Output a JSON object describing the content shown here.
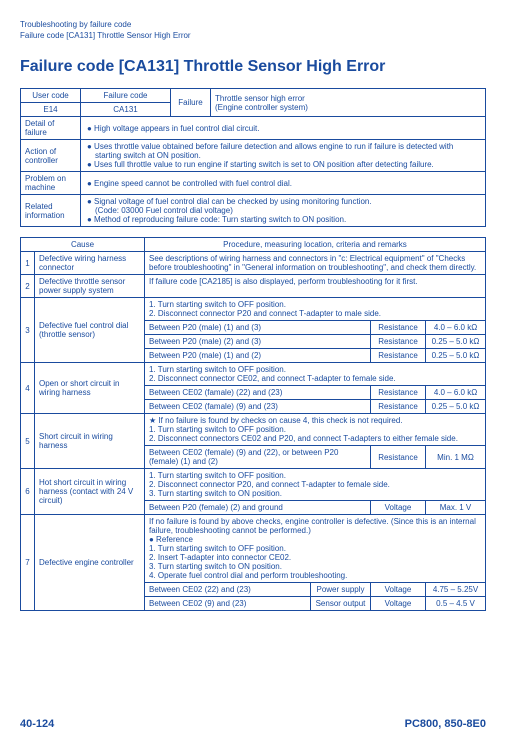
{
  "header": {
    "line1": "Troubleshooting by failure code",
    "line2": "Failure code [CA131] Throttle Sensor High Error"
  },
  "title": "Failure code [CA131] Throttle Sensor High Error",
  "table1": {
    "user_code_hdr": "User code",
    "failure_code_hdr": "Failure code",
    "failure_hdr": "Failure",
    "failure_desc1": "Throttle sensor high error",
    "failure_desc2": "(Engine controller system)",
    "user_code": "E14",
    "failure_code": "CA131",
    "rows": [
      {
        "label": "Detail of failure",
        "items": [
          "High voltage appears in fuel control dial circuit."
        ]
      },
      {
        "label": "Action of controller",
        "items": [
          "Uses throttle value obtained before failure detection and allows engine to run if failure is detected with starting switch at ON position.",
          "Uses full throttle value to run engine if starting switch is set to ON position after detecting failure."
        ]
      },
      {
        "label": "Problem on machine",
        "items": [
          "Engine speed cannot be controlled with fuel control dial."
        ]
      },
      {
        "label": "Related information",
        "items": [
          "Signal voltage of fuel control dial can be checked by using monitoring function.\n(Code: 03000 Fuel control dial voltage)",
          "Method of reproducing failure code: Turn starting switch to ON position."
        ]
      }
    ]
  },
  "table2": {
    "cause_hdr": "Cause",
    "procedure_hdr": "Procedure, measuring location, criteria and remarks",
    "rows": [
      {
        "num": "1",
        "cause": "Defective wiring harness connector",
        "procedure_full": "See descriptions of wiring harness and connectors in \"c: Electrical equipment\" of \"Checks before troubleshooting\" in \"General information on troubleshooting\", and check them directly."
      },
      {
        "num": "2",
        "cause": "Defective throttle sensor power supply system",
        "procedure_full": "If failure code [CA2185] is also displayed, perform troubleshooting for it first."
      },
      {
        "num": "3",
        "cause": "Defective fuel control dial (throttle sensor)",
        "steps": [
          "1.   Turn starting switch to OFF position.",
          "2.   Disconnect connector P20 and connect T-adapter to male side."
        ],
        "measurements": [
          {
            "loc": "Between P20 (male) (1) and (3)",
            "type": "Resistance",
            "val": "4.0 – 6.0 kΩ"
          },
          {
            "loc": "Between P20 (male) (2) and (3)",
            "type": "Resistance",
            "val": "0.25 – 5.0 kΩ"
          },
          {
            "loc": "Between P20 (male) (1) and (2)",
            "type": "Resistance",
            "val": "0.25 – 5.0 kΩ"
          }
        ]
      },
      {
        "num": "4",
        "cause": "Open or short circuit in wiring harness",
        "steps": [
          "1.   Turn starting switch to OFF position.",
          "2.   Disconnect connector CE02, and connect T-adapter to female side."
        ],
        "measurements": [
          {
            "loc": "Between CE02 (famale) (22) and (23)",
            "type": "Resistance",
            "val": "4.0 – 6.0 kΩ"
          },
          {
            "loc": "Between CE02 (famale) (9) and (23)",
            "type": "Resistance",
            "val": "0.25 – 5.0 kΩ"
          }
        ]
      },
      {
        "num": "5",
        "cause": "Short circuit in wiring harness",
        "steptext": "★  If no failure is found by checks on cause 4, this check is not required.\n1.   Turn starting switch to OFF position.\n2.   Disconnect connectors CE02 and P20, and connect T-adapters to either female side.",
        "measurements": [
          {
            "loc": "Between CE02 (female) (9) and (22), or between P20 (female) (1) and (2)",
            "type": "Resistance",
            "val": "Min. 1 MΩ"
          }
        ]
      },
      {
        "num": "6",
        "cause": "Hot short circuit in wiring harness (contact with 24 V circuit)",
        "steps": [
          "1.   Turn starting switch to OFF position.",
          "2.   Disconnect connector P20, and connect T-adapter to female side.",
          "3.   Turn starting switch to ON position."
        ],
        "measurements": [
          {
            "loc": "Between P20 (female) (2) and ground",
            "type": "Voltage",
            "val": "Max. 1 V"
          }
        ]
      },
      {
        "num": "7",
        "cause": "Defective engine controller",
        "steptext": "If no failure is found by above checks, engine controller is defective. (Since this is an internal failure, troubleshooting cannot be performed.)\n●   Reference\n1.   Turn starting switch to OFF position.\n2.   Insert T-adapter into connector CE02.\n3.   Turn starting switch to ON position.\n4.   Operate fuel control dial and perform troubleshooting.",
        "measurements": [
          {
            "loc": "Between CE02 (22) and (23)",
            "subtype": "Power supply",
            "type": "Voltage",
            "val": "4.75 – 5.25V"
          },
          {
            "loc": "Between CE02 (9) and (23)",
            "subtype": "Sensor output",
            "type": "Voltage",
            "val": "0.5 – 4.5 V"
          }
        ]
      }
    ]
  },
  "footer": {
    "left": "40-124",
    "right": "PC800, 850-8E0"
  }
}
